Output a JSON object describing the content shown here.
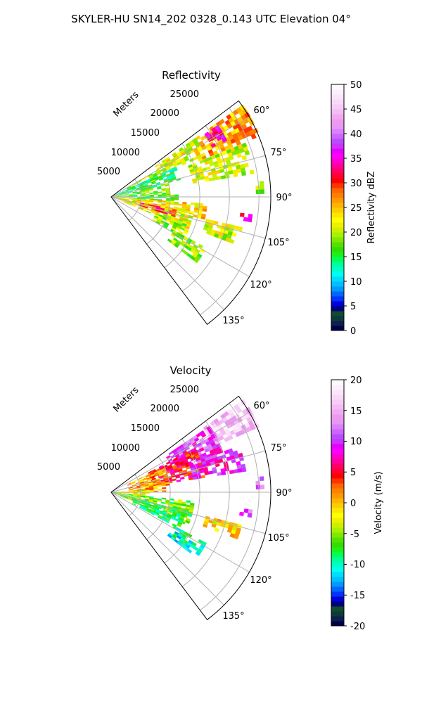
{
  "suptitle": "SKYLER-HU  SN14_202  0328_0.143 UTC Elevation 04°",
  "chart_data": [
    {
      "type": "polar-sector",
      "title": "Reflectivity",
      "radial_axis_label": "Meters",
      "radial_ticks": [
        "5000",
        "10000",
        "15000",
        "20000",
        "25000"
      ],
      "radial_tick_values": [
        5000,
        10000,
        15000,
        20000,
        25000
      ],
      "rmax": 27000,
      "theta_ticks": [
        "60°",
        "75°",
        "90°",
        "105°",
        "120°",
        "135°"
      ],
      "theta_tick_values": [
        60,
        75,
        90,
        105,
        120,
        135
      ],
      "theta_range": [
        53,
        143
      ],
      "grid": true,
      "colorbar": {
        "label": "Reflectivity dBZ",
        "min": 0,
        "max": 50,
        "ticks": [
          "0",
          "5",
          "10",
          "15",
          "20",
          "25",
          "30",
          "35",
          "40",
          "45",
          "50"
        ],
        "colors": [
          "#00004a",
          "#0c1f4f",
          "#0e3a3a",
          "#0f4d2c",
          "#00007f",
          "#0000d8",
          "#0033ff",
          "#0066ff",
          "#0099ff",
          "#00bfff",
          "#00ddff",
          "#00ffee",
          "#00ffc8",
          "#00ff9a",
          "#00ff55",
          "#1ef01e",
          "#33dd00",
          "#55e000",
          "#7fe800",
          "#aaf000",
          "#ccf000",
          "#eef000",
          "#ffff00",
          "#ffe600",
          "#ffcc00",
          "#ffb300",
          "#ff9900",
          "#ff7f00",
          "#ff6600",
          "#ff3300",
          "#ff0000",
          "#ff0033",
          "#ff0066",
          "#ff0099",
          "#ff00cc",
          "#ff00ff",
          "#e600ff",
          "#cc33ff",
          "#b84dff",
          "#cc66ff",
          "#dd7fff",
          "#e699f0",
          "#ee99ee",
          "#f0aaf0",
          "#f4bbf4",
          "#f7ccf7",
          "#f9d9f9",
          "#fbe5fb",
          "#fdf0fd",
          "#fff8ff"
        ]
      },
      "echo_regions": [
        {
          "ang": [
            55,
            67
          ],
          "r": [
            16000,
            27000
          ],
          "value": 26
        },
        {
          "ang": [
            55,
            66
          ],
          "r": [
            9000,
            17000
          ],
          "value": 22
        },
        {
          "ang": [
            56,
            63
          ],
          "r": [
            19000,
            21500
          ],
          "value": 34
        },
        {
          "ang": [
            60,
            68
          ],
          "r": [
            3000,
            9000
          ],
          "value": 19
        },
        {
          "ang": [
            65,
            76
          ],
          "r": [
            0,
            12000
          ],
          "value": 14
        },
        {
          "ang": [
            68,
            80
          ],
          "r": [
            14000,
            24000
          ],
          "value": 21
        },
        {
          "ang": [
            76,
            88
          ],
          "r": [
            0,
            10000
          ],
          "value": 17
        },
        {
          "ang": [
            88,
            95
          ],
          "r": [
            0,
            11000
          ],
          "value": 16
        },
        {
          "ang": [
            94,
            102
          ],
          "r": [
            0,
            16000
          ],
          "value": 24
        },
        {
          "ang": [
            100,
            112
          ],
          "r": [
            0,
            14000
          ],
          "value": 22
        },
        {
          "ang": [
            101,
            106
          ],
          "r": [
            5000,
            11000
          ],
          "value": 30
        },
        {
          "ang": [
            110,
            118
          ],
          "r": [
            8000,
            14000
          ],
          "value": 19
        },
        {
          "ang": [
            103,
            110
          ],
          "r": [
            16500,
            22500
          ],
          "value": 21
        },
        {
          "ang": [
            118,
            126
          ],
          "r": [
            12000,
            18000
          ],
          "value": 19
        },
        {
          "ang": [
            97,
            100
          ],
          "r": [
            22000,
            24000
          ],
          "value": 33
        },
        {
          "ang": [
            84,
            88
          ],
          "r": [
            24500,
            25500
          ],
          "value": 20
        }
      ]
    },
    {
      "type": "polar-sector",
      "title": "Velocity",
      "radial_axis_label": "Meters",
      "radial_ticks": [
        "5000",
        "10000",
        "15000",
        "20000",
        "25000"
      ],
      "radial_tick_values": [
        5000,
        10000,
        15000,
        20000,
        25000
      ],
      "rmax": 27000,
      "theta_ticks": [
        "60°",
        "75°",
        "90°",
        "105°",
        "120°",
        "135°"
      ],
      "theta_tick_values": [
        60,
        75,
        90,
        105,
        120,
        135
      ],
      "theta_range": [
        53,
        143
      ],
      "grid": true,
      "colorbar": {
        "label": "Velocity (m/s)",
        "min": -20,
        "max": 20,
        "ticks": [
          "-20",
          "-15",
          "-10",
          "-5",
          "0",
          "5",
          "10",
          "15",
          "20"
        ],
        "colors": [
          "#00004a",
          "#0c1f4f",
          "#0e3a3a",
          "#0f4d2c",
          "#00007f",
          "#0000d8",
          "#0033ff",
          "#0066ff",
          "#0099ff",
          "#00bfff",
          "#00ddff",
          "#00ffee",
          "#00ffc8",
          "#00ff9a",
          "#00ff55",
          "#1ef01e",
          "#33dd00",
          "#55e000",
          "#7fe800",
          "#aaf000",
          "#ccf000",
          "#eef000",
          "#ffff00",
          "#ffe600",
          "#ffcc00",
          "#ffb300",
          "#ff9900",
          "#ff7f00",
          "#ff6600",
          "#ff3300",
          "#ff0000",
          "#ff0033",
          "#ff0066",
          "#ff0099",
          "#ff00cc",
          "#ff00ff",
          "#e600ff",
          "#cc33ff",
          "#b84dff",
          "#cc66ff",
          "#dd7fff",
          "#e699f0",
          "#ee99ee",
          "#f0aaf0",
          "#f4bbf4",
          "#f7ccf7",
          "#f9d9f9",
          "#fbe5fb",
          "#fdf0fd",
          "#fff8ff"
        ]
      },
      "echo_regions": [
        {
          "ang": [
            55,
            66
          ],
          "r": [
            19000,
            27000
          ],
          "value": 16
        },
        {
          "ang": [
            56,
            70
          ],
          "r": [
            11000,
            20000
          ],
          "value": 10
        },
        {
          "ang": [
            62,
            80
          ],
          "r": [
            7000,
            16000
          ],
          "value": 5
        },
        {
          "ang": [
            64,
            88
          ],
          "r": [
            3000,
            10000
          ],
          "value": 1
        },
        {
          "ang": [
            70,
            80
          ],
          "r": [
            14000,
            23000
          ],
          "value": 9
        },
        {
          "ang": [
            86,
            98
          ],
          "r": [
            0,
            6000
          ],
          "value": -2
        },
        {
          "ang": [
            96,
            112
          ],
          "r": [
            0,
            14000
          ],
          "value": -6
        },
        {
          "ang": [
            104,
            118
          ],
          "r": [
            4000,
            13000
          ],
          "value": -8
        },
        {
          "ang": [
            104,
            110
          ],
          "r": [
            16500,
            22500
          ],
          "value": -1
        },
        {
          "ang": [
            118,
            126
          ],
          "r": [
            12000,
            18000
          ],
          "value": -10
        },
        {
          "ang": [
            97,
            100
          ],
          "r": [
            22000,
            24000
          ],
          "value": 11
        },
        {
          "ang": [
            84,
            88
          ],
          "r": [
            24500,
            25500
          ],
          "value": 12
        }
      ]
    }
  ]
}
